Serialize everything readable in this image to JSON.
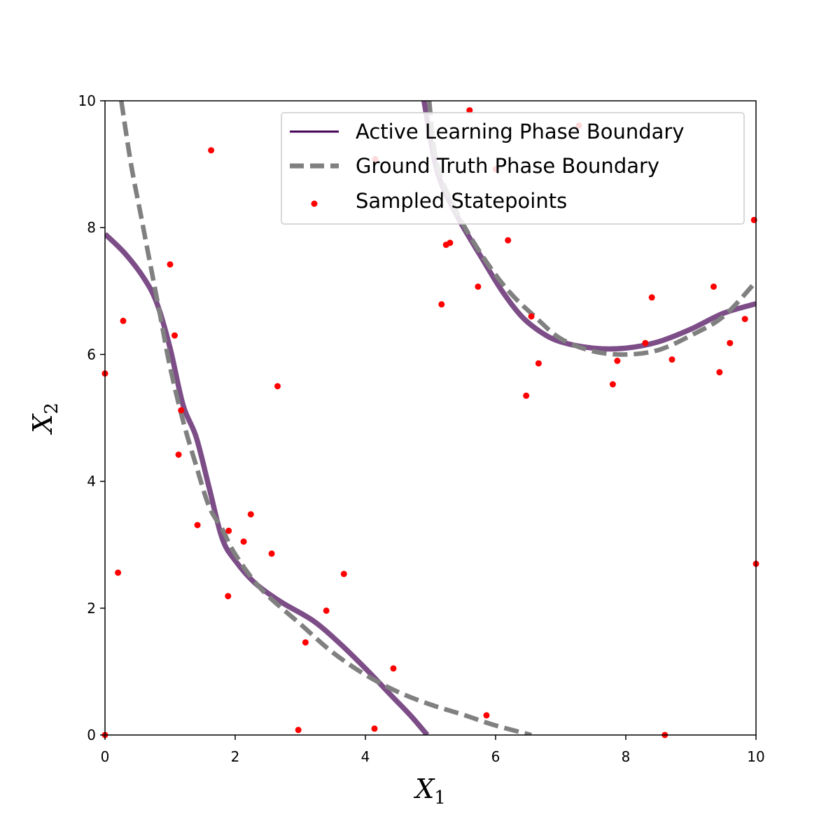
{
  "chart_data": {
    "type": "line",
    "title": "",
    "xlabel_main": "X",
    "xlabel_sub": "1",
    "ylabel_main": "X",
    "ylabel_sub": "2",
    "xlim": [
      0,
      10
    ],
    "ylim": [
      0,
      10
    ],
    "xticks": [
      0,
      2,
      4,
      6,
      8,
      10
    ],
    "yticks": [
      0,
      2,
      4,
      6,
      8,
      10
    ],
    "grid": false,
    "legend_position": "top-right",
    "legend": [
      {
        "label": "Active Learning Phase Boundary",
        "kind": "solid",
        "color": "#440154"
      },
      {
        "label": "Ground Truth Phase Boundary",
        "kind": "dashed",
        "color": "#808080"
      },
      {
        "label": "Sampled Statepoints",
        "kind": "point",
        "color": "#ff0000"
      }
    ],
    "series": [
      {
        "name": "Active Learning Phase Boundary",
        "kind": "solid",
        "color": "#440154",
        "segments": [
          [
            [
              0,
              7.9
            ],
            [
              0.3,
              7.6
            ],
            [
              0.6,
              7.2
            ],
            [
              0.8,
              6.8
            ],
            [
              1.0,
              6.1
            ],
            [
              1.2,
              5.2
            ],
            [
              1.4,
              4.7
            ],
            [
              1.6,
              3.9
            ],
            [
              1.8,
              3.1
            ],
            [
              2.0,
              2.75
            ],
            [
              2.3,
              2.4
            ],
            [
              2.7,
              2.1
            ],
            [
              3.2,
              1.8
            ],
            [
              3.6,
              1.45
            ],
            [
              4.0,
              1.05
            ],
            [
              4.4,
              0.62
            ],
            [
              4.7,
              0.3
            ],
            [
              4.95,
              0
            ]
          ],
          [
            [
              4.9,
              10
            ],
            [
              5.1,
              8.9
            ],
            [
              5.4,
              8.2
            ],
            [
              5.8,
              7.5
            ],
            [
              6.1,
              7.0
            ],
            [
              6.4,
              6.6
            ],
            [
              6.7,
              6.35
            ],
            [
              7.0,
              6.2
            ],
            [
              7.5,
              6.1
            ],
            [
              8.0,
              6.1
            ],
            [
              8.5,
              6.2
            ],
            [
              9.0,
              6.4
            ],
            [
              9.5,
              6.65
            ],
            [
              10,
              6.8
            ]
          ]
        ]
      },
      {
        "name": "Ground Truth Phase Boundary",
        "kind": "dashed",
        "color": "#808080",
        "segments": [
          [
            [
              0.25,
              10
            ],
            [
              0.4,
              9.0
            ],
            [
              0.55,
              8.2
            ],
            [
              0.7,
              7.4
            ],
            [
              0.85,
              6.6
            ],
            [
              1.0,
              5.8
            ],
            [
              1.2,
              4.95
            ],
            [
              1.4,
              4.25
            ],
            [
              1.6,
              3.6
            ],
            [
              1.8,
              3.25
            ],
            [
              2.0,
              2.85
            ],
            [
              2.4,
              2.3
            ],
            [
              3.0,
              1.75
            ],
            [
              3.5,
              1.3
            ],
            [
              4.0,
              0.95
            ],
            [
              4.5,
              0.68
            ],
            [
              5.0,
              0.48
            ],
            [
              5.5,
              0.32
            ],
            [
              6.0,
              0.15
            ],
            [
              6.55,
              0
            ]
          ],
          [
            [
              4.98,
              10
            ],
            [
              5.1,
              9.0
            ],
            [
              5.4,
              8.25
            ],
            [
              5.8,
              7.55
            ],
            [
              6.2,
              7.0
            ],
            [
              6.6,
              6.6
            ],
            [
              7.0,
              6.25
            ],
            [
              7.5,
              6.05
            ],
            [
              8.0,
              6.0
            ],
            [
              8.5,
              6.07
            ],
            [
              9.0,
              6.3
            ],
            [
              9.5,
              6.6
            ],
            [
              10,
              7.15
            ]
          ]
        ]
      }
    ],
    "points": {
      "name": "Sampled Statepoints",
      "color": "#ff0000",
      "xy": [
        [
          0,
          5.7
        ],
        [
          0.28,
          6.53
        ],
        [
          0.2,
          2.56
        ],
        [
          0,
          0
        ],
        [
          1.0,
          7.42
        ],
        [
          1.07,
          6.3
        ],
        [
          1.63,
          9.22
        ],
        [
          1.17,
          5.12
        ],
        [
          1.13,
          4.42
        ],
        [
          1.42,
          3.31
        ],
        [
          1.9,
          3.22
        ],
        [
          2.13,
          3.05
        ],
        [
          2.24,
          3.48
        ],
        [
          1.89,
          2.19
        ],
        [
          2.56,
          2.86
        ],
        [
          2.65,
          5.5
        ],
        [
          3.67,
          2.54
        ],
        [
          3.4,
          1.96
        ],
        [
          3.08,
          1.46
        ],
        [
          2.97,
          0.08
        ],
        [
          4.14,
          0.1
        ],
        [
          4.43,
          1.05
        ],
        [
          4.15,
          9.08
        ],
        [
          5.17,
          6.79
        ],
        [
          5.24,
          7.73
        ],
        [
          5.3,
          7.76
        ],
        [
          5.6,
          9.85
        ],
        [
          5.73,
          7.07
        ],
        [
          5.86,
          0.31
        ],
        [
          6.0,
          8.92
        ],
        [
          6.19,
          7.8
        ],
        [
          6.47,
          5.35
        ],
        [
          6.55,
          6.6
        ],
        [
          6.66,
          5.86
        ],
        [
          7.28,
          9.61
        ],
        [
          7.8,
          5.53
        ],
        [
          7.87,
          5.9
        ],
        [
          8.3,
          6.18
        ],
        [
          8.4,
          6.9
        ],
        [
          8.6,
          0
        ],
        [
          8.71,
          5.92
        ],
        [
          9.35,
          7.07
        ],
        [
          9.44,
          5.72
        ],
        [
          9.6,
          6.18
        ],
        [
          9.83,
          6.56
        ],
        [
          9.97,
          8.12
        ],
        [
          10.0,
          2.7
        ]
      ]
    }
  }
}
